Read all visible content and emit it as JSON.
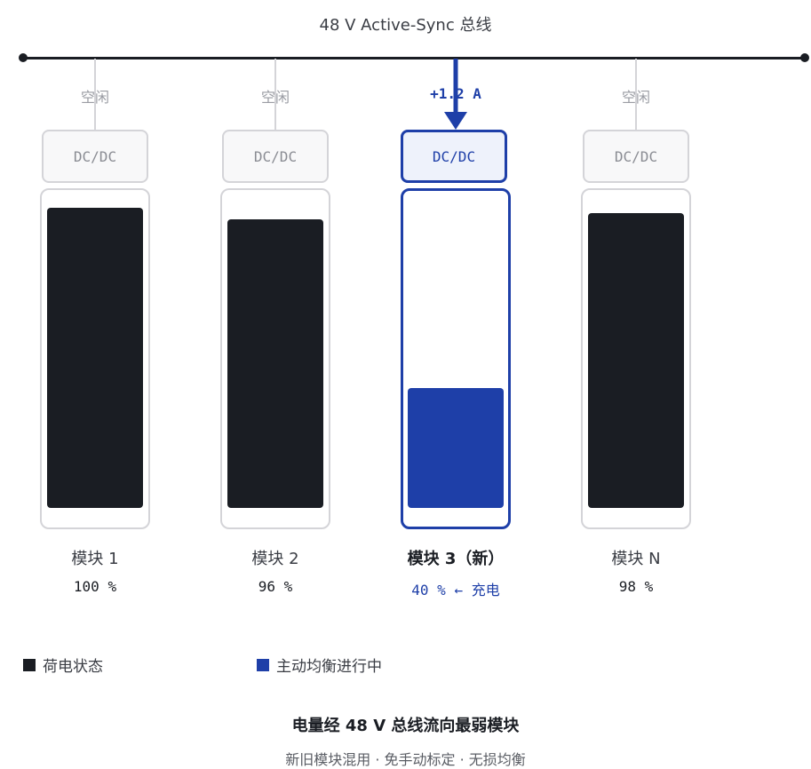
{
  "bus": {
    "title": "48 V Active-Sync 总线"
  },
  "modules": [
    {
      "status": "空闲",
      "dcdc": "DC/DC",
      "name": "模块 1",
      "soc_label": "100 %",
      "soc": 100,
      "active": false
    },
    {
      "status": "空闲",
      "dcdc": "DC/DC",
      "name": "模块 2",
      "soc_label": "96 %",
      "soc": 96,
      "active": false
    },
    {
      "status": "+1.2 A",
      "dcdc": "DC/DC",
      "name": "模块 3（新）",
      "soc_label": "40 % ← 充电",
      "soc": 40,
      "active": true
    },
    {
      "status": "空闲",
      "dcdc": "DC/DC",
      "name": "模块 N",
      "soc_label": "98 %",
      "soc": 98,
      "active": false
    }
  ],
  "legend": [
    {
      "label": "荷电状态",
      "color": "#1a1d23"
    },
    {
      "label": "主动均衡进行中",
      "color": "#1e3fa8"
    }
  ],
  "caption": {
    "title": "电量经 48 V 总线流向最弱模块",
    "subtitle": "新旧模块混用 · 免手动标定 · 无损均衡"
  },
  "colors": {
    "ink": "#1a1d23",
    "accent": "#1e3fa8",
    "idle": "#d4d4d8"
  }
}
